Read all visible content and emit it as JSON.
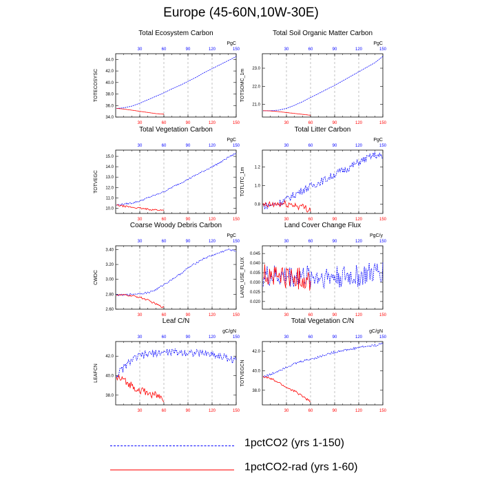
{
  "title": "Europe (45-60N,10W-30E)",
  "colors": {
    "exp1": "#0000ff",
    "exp2": "#ff0000",
    "grid": "#999999"
  },
  "legend": [
    {
      "label": "1pctCO2 (yrs 1-150)",
      "color": "#0000ff",
      "dash": "dashed"
    },
    {
      "label": "1pctCO2-rad (yrs 1-60)",
      "color": "#ff0000",
      "dash": "solid"
    }
  ],
  "chart_data": [
    {
      "type": "line",
      "title": "Total Ecosystem Carbon",
      "ylabel": "TOTECOSYSC",
      "units": "PgC",
      "xlim": [
        0,
        150
      ],
      "ylim": [
        34.0,
        45.0
      ],
      "yticks": [
        "34.0",
        "36.0",
        "38.0",
        "40.0",
        "42.0",
        "44.0"
      ],
      "xticks": [
        "30",
        "60",
        "90",
        "120",
        "150"
      ],
      "noise": 0.0,
      "series": [
        {
          "color": "blue",
          "x": [
            1,
            10,
            20,
            30,
            40,
            50,
            60,
            70,
            80,
            90,
            100,
            110,
            120,
            130,
            140,
            150
          ],
          "y": [
            35.5,
            35.6,
            35.9,
            36.4,
            37.0,
            37.6,
            38.2,
            38.9,
            39.5,
            40.2,
            40.9,
            41.7,
            42.4,
            43.1,
            43.8,
            44.5
          ]
        },
        {
          "color": "red",
          "x": [
            1,
            10,
            20,
            30,
            40,
            50,
            60
          ],
          "y": [
            35.5,
            35.4,
            35.2,
            35.0,
            34.8,
            34.6,
            34.5
          ]
        }
      ]
    },
    {
      "type": "line",
      "title": "Total Soil Organic Matter Carbon",
      "ylabel": "TOTSOMC_1m",
      "units": "PgC",
      "xlim": [
        0,
        150
      ],
      "ylim": [
        20.3,
        23.8
      ],
      "yticks": [
        "21.0",
        "22.0",
        "23.0"
      ],
      "xticks": [
        "30",
        "60",
        "90",
        "120",
        "150"
      ],
      "noise": 0.0,
      "series": [
        {
          "color": "blue",
          "x": [
            1,
            10,
            20,
            30,
            40,
            50,
            60,
            70,
            80,
            90,
            100,
            110,
            120,
            130,
            140,
            150
          ],
          "y": [
            20.65,
            20.65,
            20.68,
            20.78,
            20.95,
            21.15,
            21.38,
            21.6,
            21.83,
            22.05,
            22.3,
            22.55,
            22.8,
            23.05,
            23.3,
            23.65
          ]
        },
        {
          "color": "red",
          "x": [
            1,
            10,
            20,
            30,
            40,
            50,
            60
          ],
          "y": [
            20.65,
            20.64,
            20.6,
            20.55,
            20.5,
            20.45,
            20.4
          ]
        }
      ]
    },
    {
      "type": "line",
      "title": "Total Vegetation Carbon",
      "ylabel": "TOTVEGC",
      "units": "PgC",
      "xlim": [
        0,
        150
      ],
      "ylim": [
        9.5,
        15.6
      ],
      "yticks": [
        "10.0",
        "11.0",
        "12.0",
        "13.0",
        "14.0",
        "15.0"
      ],
      "xticks": [
        "30",
        "60",
        "90",
        "120",
        "150"
      ],
      "noise": 0.08,
      "series": [
        {
          "color": "blue",
          "x": [
            1,
            10,
            20,
            30,
            40,
            50,
            60,
            70,
            80,
            90,
            100,
            110,
            120,
            130,
            140,
            150
          ],
          "y": [
            10.3,
            10.4,
            10.5,
            10.7,
            11.0,
            11.3,
            11.6,
            12.0,
            12.4,
            12.8,
            13.2,
            13.6,
            14.0,
            14.4,
            14.9,
            15.3
          ]
        },
        {
          "color": "red",
          "x": [
            1,
            10,
            20,
            30,
            40,
            50,
            60
          ],
          "y": [
            10.3,
            10.2,
            10.1,
            10.0,
            9.9,
            9.85,
            9.8
          ]
        }
      ]
    },
    {
      "type": "line",
      "title": "Total Litter Carbon",
      "ylabel": "TOTLITC_1m",
      "units": "PgC",
      "xlim": [
        0,
        150
      ],
      "ylim": [
        0.7,
        1.38
      ],
      "yticks": [
        "0.8",
        "1.0",
        "1.2"
      ],
      "xticks": [
        "30",
        "60",
        "90",
        "120",
        "150"
      ],
      "noise": 0.04,
      "series": [
        {
          "color": "blue",
          "x": [
            1,
            10,
            20,
            30,
            40,
            50,
            60,
            70,
            80,
            90,
            100,
            110,
            120,
            130,
            140,
            150
          ],
          "y": [
            0.78,
            0.79,
            0.81,
            0.85,
            0.9,
            0.95,
            0.99,
            1.03,
            1.07,
            1.12,
            1.16,
            1.2,
            1.25,
            1.29,
            1.33,
            1.3
          ]
        },
        {
          "color": "red",
          "x": [
            1,
            10,
            20,
            30,
            40,
            50,
            60
          ],
          "y": [
            0.78,
            0.79,
            0.8,
            0.8,
            0.79,
            0.77,
            0.74
          ]
        }
      ]
    },
    {
      "type": "line",
      "title": "Coarse Woody Debris Carbon",
      "ylabel": "CWDC",
      "units": "PgC",
      "xlim": [
        0,
        150
      ],
      "ylim": [
        2.6,
        3.45
      ],
      "yticks": [
        "2.60",
        "2.80",
        "3.00",
        "3.20",
        "3.40"
      ],
      "xticks": [
        "30",
        "60",
        "90",
        "120",
        "150"
      ],
      "noise": 0.012,
      "series": [
        {
          "color": "blue",
          "x": [
            1,
            10,
            20,
            30,
            40,
            50,
            60,
            70,
            80,
            90,
            100,
            110,
            120,
            130,
            140,
            150
          ],
          "y": [
            2.79,
            2.79,
            2.8,
            2.81,
            2.82,
            2.86,
            2.93,
            3.0,
            3.07,
            3.15,
            3.22,
            3.28,
            3.32,
            3.36,
            3.4,
            3.38
          ]
        },
        {
          "color": "red",
          "x": [
            1,
            10,
            20,
            30,
            40,
            50,
            60
          ],
          "y": [
            2.79,
            2.79,
            2.78,
            2.76,
            2.72,
            2.67,
            2.62
          ]
        }
      ]
    },
    {
      "type": "line",
      "title": "Land Cover Change Flux",
      "ylabel": "LAND_USE_FLUX",
      "units": "PgC/y",
      "xlim": [
        0,
        150
      ],
      "ylim": [
        0.016,
        0.049
      ],
      "yticks": [
        "0.020",
        "0.025",
        "0.030",
        "0.035",
        "0.040",
        "0.045"
      ],
      "xticks": [
        "30",
        "60",
        "90",
        "120",
        "150"
      ],
      "noise": 0.006,
      "series": [
        {
          "color": "blue",
          "x": [
            1,
            10,
            20,
            30,
            40,
            50,
            60,
            70,
            80,
            90,
            100,
            110,
            120,
            130,
            140,
            150
          ],
          "y": [
            0.033,
            0.033,
            0.033,
            0.033,
            0.033,
            0.033,
            0.033,
            0.033,
            0.033,
            0.033,
            0.033,
            0.033,
            0.033,
            0.034,
            0.035,
            0.036
          ]
        },
        {
          "color": "red",
          "x": [
            1,
            10,
            20,
            30,
            40,
            50,
            60
          ],
          "y": [
            0.034,
            0.034,
            0.033,
            0.033,
            0.032,
            0.032,
            0.031
          ]
        }
      ]
    },
    {
      "type": "line",
      "title": "Leaf C/N",
      "ylabel": "LEAFCN",
      "units": "gC/gN",
      "xlim": [
        0,
        150
      ],
      "ylim": [
        37.0,
        43.5
      ],
      "yticks": [
        "38.0",
        "40.0",
        "42.0"
      ],
      "xticks": [
        "30",
        "60",
        "90",
        "120",
        "150"
      ],
      "noise": 0.4,
      "series": [
        {
          "color": "blue",
          "x": [
            1,
            10,
            20,
            30,
            40,
            50,
            60,
            70,
            80,
            90,
            100,
            110,
            120,
            130,
            140,
            150
          ],
          "y": [
            40.0,
            40.8,
            41.6,
            42.0,
            42.2,
            42.3,
            42.4,
            42.4,
            42.4,
            42.4,
            42.3,
            42.3,
            42.2,
            42.0,
            41.8,
            41.5
          ]
        },
        {
          "color": "red",
          "x": [
            1,
            10,
            20,
            30,
            40,
            50,
            60
          ],
          "y": [
            39.8,
            39.5,
            39.0,
            38.5,
            38.2,
            38.0,
            37.6
          ]
        }
      ]
    },
    {
      "type": "line",
      "title": "Total Vegetation C/N",
      "ylabel": "TOTVEGCN",
      "units": "gC/gN",
      "xlim": [
        0,
        150
      ],
      "ylim": [
        36.5,
        43.0
      ],
      "yticks": [
        "38.0",
        "40.0",
        "42.0"
      ],
      "xticks": [
        "30",
        "60",
        "90",
        "120",
        "150"
      ],
      "noise": 0.12,
      "series": [
        {
          "color": "blue",
          "x": [
            1,
            10,
            20,
            30,
            40,
            50,
            60,
            70,
            80,
            90,
            100,
            110,
            120,
            130,
            140,
            150
          ],
          "y": [
            39.4,
            39.6,
            40.0,
            40.4,
            40.7,
            41.0,
            41.2,
            41.4,
            41.7,
            41.9,
            42.1,
            42.2,
            42.4,
            42.5,
            42.6,
            42.8
          ]
        },
        {
          "color": "red",
          "x": [
            1,
            10,
            20,
            30,
            40,
            50,
            60
          ],
          "y": [
            39.4,
            39.2,
            38.8,
            38.3,
            37.9,
            37.4,
            36.8
          ]
        }
      ]
    }
  ]
}
